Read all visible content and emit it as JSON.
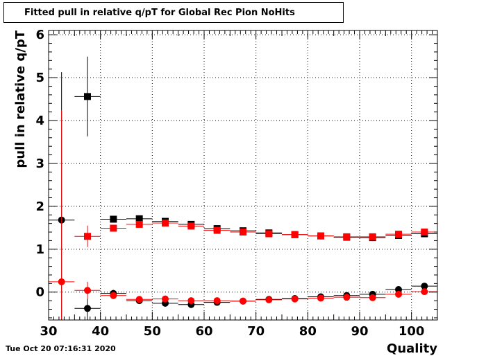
{
  "title": "Fitted pull in relative q/pT for Global Rec Pion NoHits",
  "timestamp": "Tue Oct 20 07:16:31 2020",
  "chart_data": {
    "type": "scatter",
    "title": "Fitted pull in relative q/pT for Global Rec Pion NoHits",
    "xlabel": "Quality",
    "ylabel": "pull in relative q/pT",
    "xlim": [
      30,
      105
    ],
    "ylim": [
      -0.65,
      6.1
    ],
    "x_ticks": [
      30,
      40,
      50,
      60,
      70,
      80,
      90,
      100
    ],
    "y_ticks": [
      0,
      1,
      2,
      3,
      4,
      5,
      6
    ],
    "grid": true,
    "bin_width": 5,
    "series": [
      {
        "marker": "square",
        "color": "#000000",
        "x": [
          37.5,
          42.5,
          47.5,
          52.5,
          57.5,
          62.5,
          67.5,
          72.5,
          77.5,
          82.5,
          87.5,
          92.5,
          97.5,
          102.5
        ],
        "y": [
          4.56,
          1.7,
          1.71,
          1.65,
          1.58,
          1.48,
          1.43,
          1.38,
          1.34,
          1.31,
          1.28,
          1.27,
          1.32,
          1.36
        ],
        "yerr": [
          0.93,
          0.05,
          0.04,
          0.03,
          0.03,
          0.03,
          0.03,
          0.02,
          0.02,
          0.02,
          0.02,
          0.02,
          0.02,
          0.02
        ]
      },
      {
        "marker": "square",
        "color": "#ff0000",
        "x": [
          37.5,
          42.5,
          47.5,
          52.5,
          57.5,
          62.5,
          67.5,
          72.5,
          77.5,
          82.5,
          87.5,
          92.5,
          97.5,
          102.5
        ],
        "y": [
          1.3,
          1.49,
          1.58,
          1.61,
          1.54,
          1.44,
          1.4,
          1.36,
          1.34,
          1.31,
          1.29,
          1.29,
          1.35,
          1.4
        ],
        "yerr": [
          0.25,
          0.08,
          0.05,
          0.04,
          0.04,
          0.03,
          0.03,
          0.02,
          0.02,
          0.02,
          0.02,
          0.02,
          0.02,
          0.02
        ]
      },
      {
        "marker": "circle",
        "color": "#000000",
        "x": [
          32.5,
          37.5,
          42.5,
          47.5,
          52.5,
          57.5,
          62.5,
          67.5,
          72.5,
          77.5,
          82.5,
          87.5,
          92.5,
          97.5,
          102.5
        ],
        "y": [
          1.68,
          -0.38,
          -0.03,
          -0.2,
          -0.26,
          -0.29,
          -0.24,
          -0.21,
          -0.17,
          -0.15,
          -0.11,
          -0.08,
          -0.05,
          0.06,
          0.14
        ],
        "yerr": [
          3.45,
          0.3,
          0.08,
          0.05,
          0.04,
          0.04,
          0.03,
          0.03,
          0.02,
          0.02,
          0.02,
          0.02,
          0.02,
          0.02,
          0.02
        ]
      },
      {
        "marker": "circle",
        "color": "#ff0000",
        "x": [
          32.5,
          37.5,
          42.5,
          47.5,
          52.5,
          57.5,
          62.5,
          67.5,
          72.5,
          77.5,
          82.5,
          87.5,
          92.5,
          97.5,
          102.5
        ],
        "y": [
          0.24,
          0.04,
          -0.08,
          -0.17,
          -0.16,
          -0.2,
          -0.2,
          -0.21,
          -0.18,
          -0.16,
          -0.14,
          -0.12,
          -0.13,
          -0.05,
          0.01
        ],
        "yerr": [
          4.0,
          0.2,
          0.08,
          0.05,
          0.04,
          0.04,
          0.03,
          0.03,
          0.02,
          0.02,
          0.02,
          0.02,
          0.02,
          0.02,
          0.02
        ]
      }
    ]
  }
}
